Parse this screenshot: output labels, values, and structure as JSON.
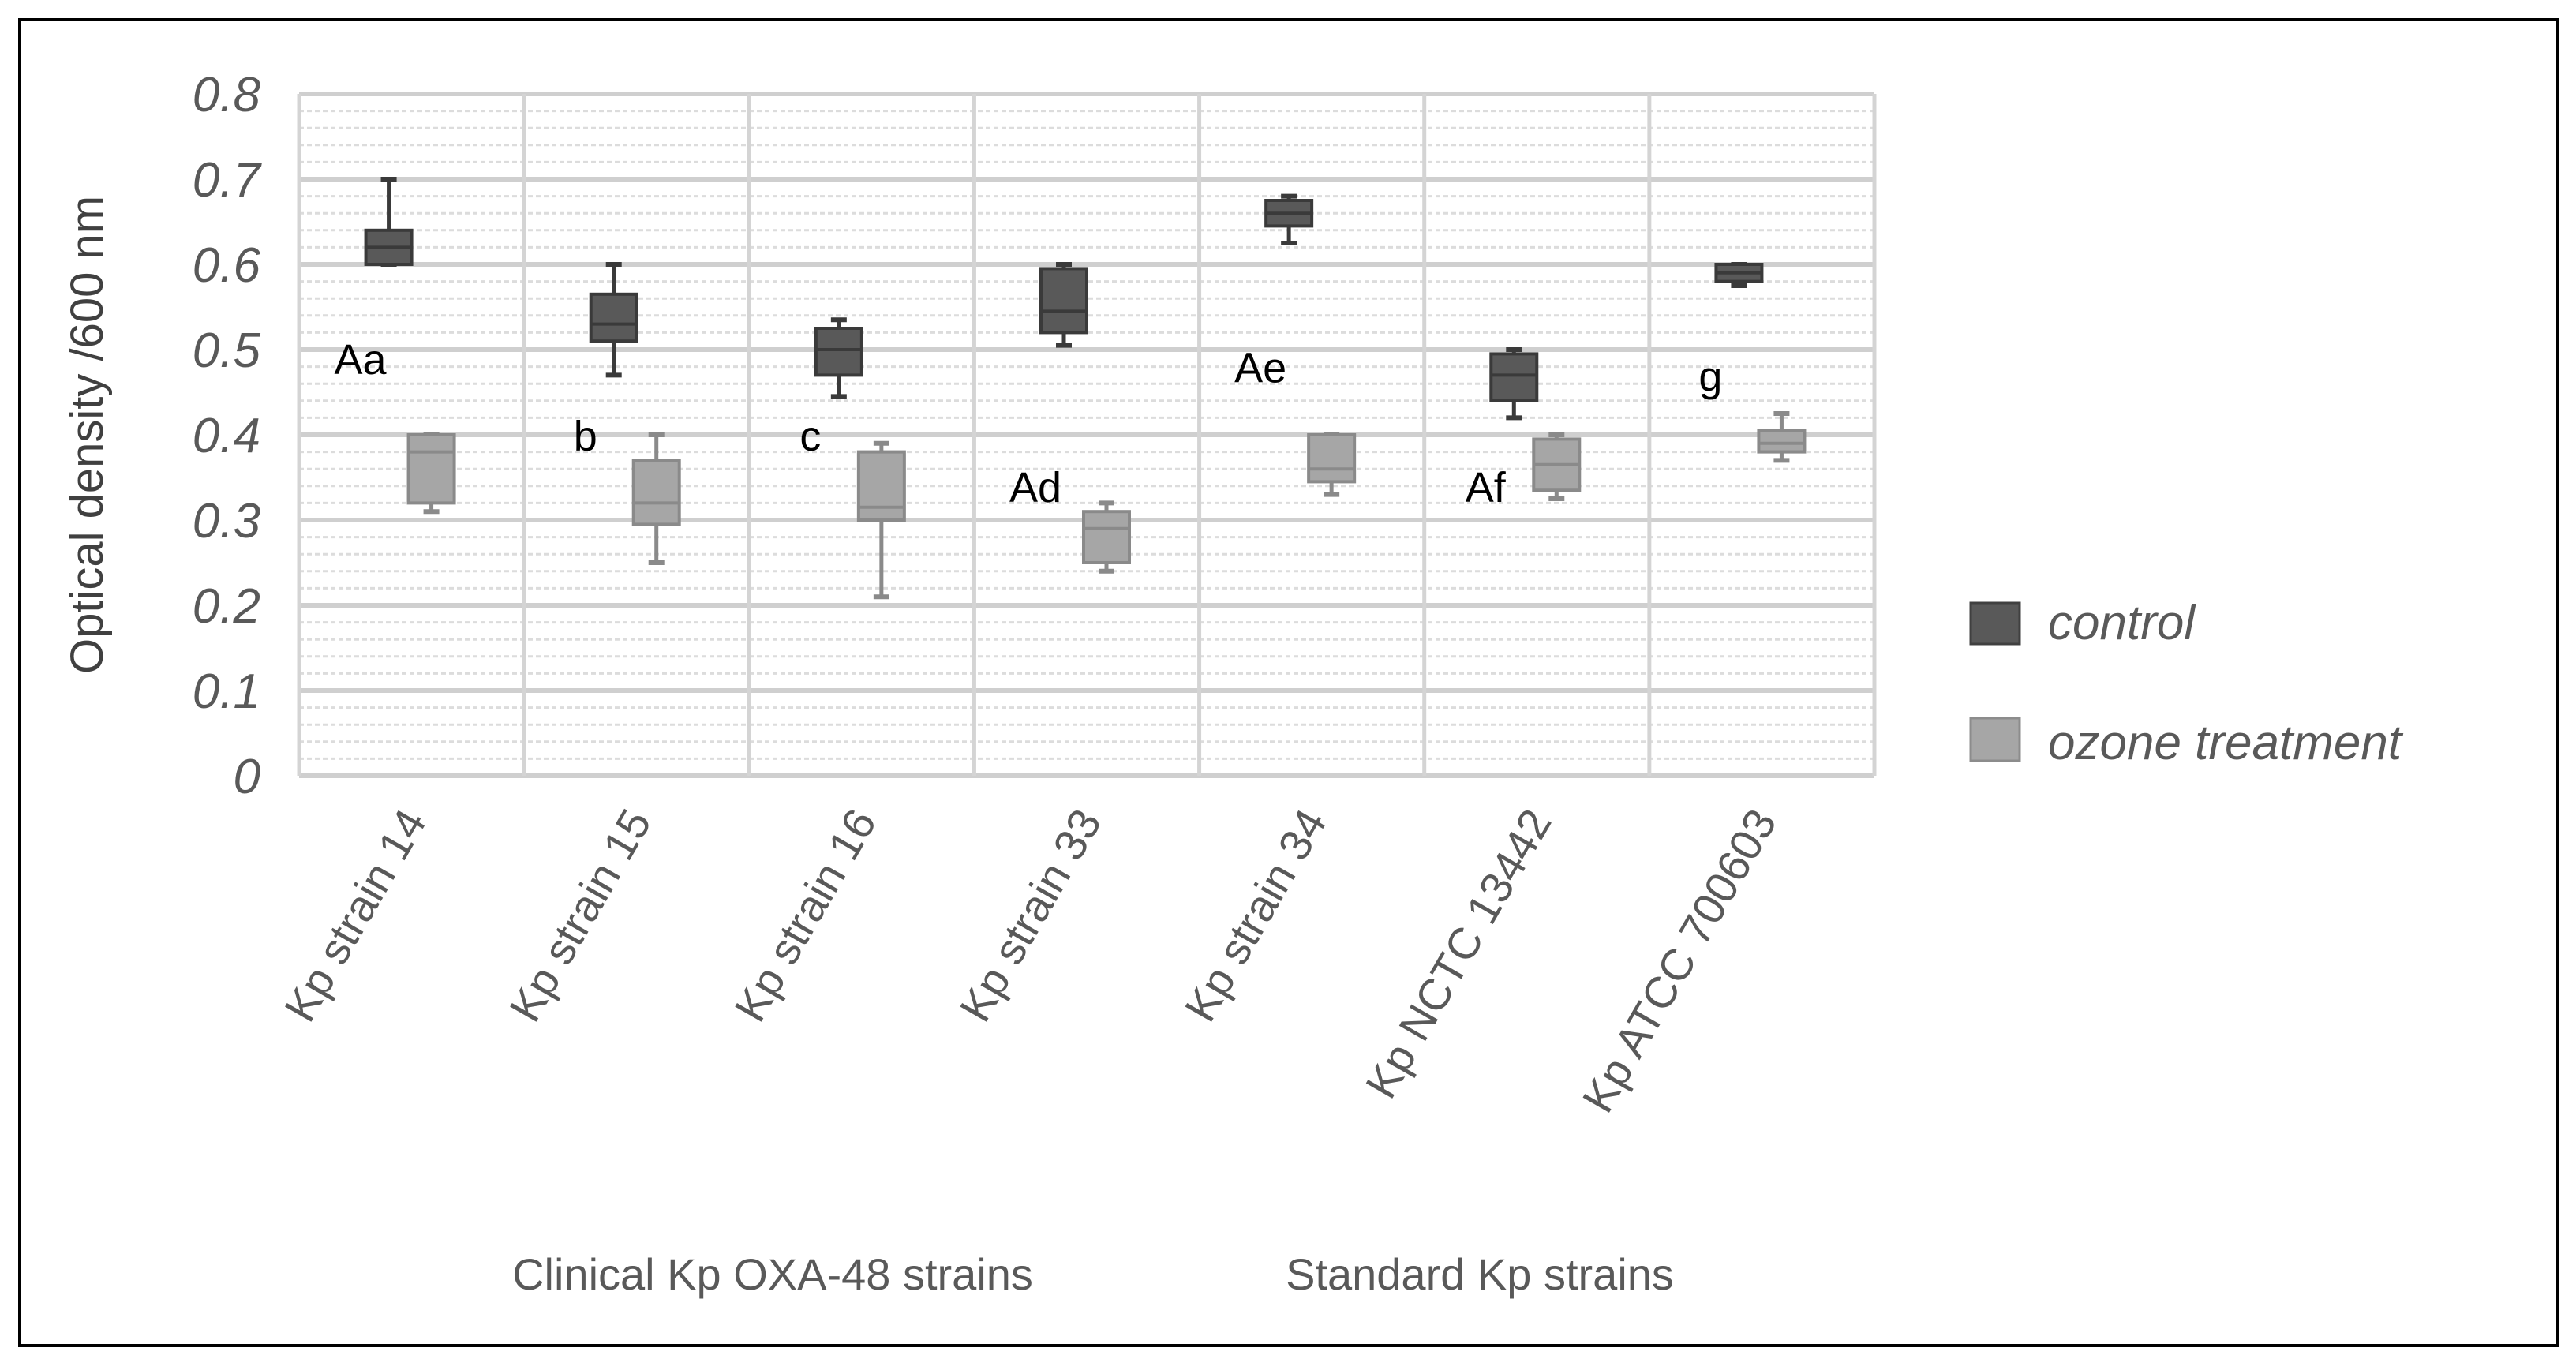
{
  "chart_data": {
    "type": "boxplot",
    "title": "",
    "ylabel": "Optical density /600 nm",
    "xlabel": "",
    "ylim": [
      0,
      0.8
    ],
    "yticks": [
      "0",
      "0.1",
      "0.2",
      "0.3",
      "0.4",
      "0.5",
      "0.6",
      "0.7",
      "0.8"
    ],
    "grid": true,
    "legend_position": "right",
    "categories": [
      "Kp strain 14",
      "Kp strain 15",
      "Kp strain 16",
      "Kp strain 33",
      "Kp strain 34",
      "Kp NCTC 13442",
      "Kp ATCC 700603"
    ],
    "category_groups": [
      {
        "label": "Clinical Kp OXA-48 strains"
      },
      {
        "label": "Standard Kp strains"
      }
    ],
    "series": [
      {
        "name": "control",
        "color": "#595959",
        "boxes": [
          {
            "min": 0.6,
            "q1": 0.6,
            "median": 0.62,
            "q3": 0.64,
            "max": 0.7
          },
          {
            "min": 0.47,
            "q1": 0.51,
            "median": 0.53,
            "q3": 0.565,
            "max": 0.6
          },
          {
            "min": 0.445,
            "q1": 0.47,
            "median": 0.5,
            "q3": 0.525,
            "max": 0.535
          },
          {
            "min": 0.505,
            "q1": 0.52,
            "median": 0.545,
            "q3": 0.595,
            "max": 0.6
          },
          {
            "min": 0.625,
            "q1": 0.645,
            "median": 0.66,
            "q3": 0.675,
            "max": 0.68
          },
          {
            "min": 0.42,
            "q1": 0.44,
            "median": 0.47,
            "q3": 0.495,
            "max": 0.5
          },
          {
            "min": 0.575,
            "q1": 0.58,
            "median": 0.59,
            "q3": 0.6,
            "max": 0.6
          }
        ]
      },
      {
        "name": "ozone treatment",
        "color": "#a6a6a6",
        "boxes": [
          {
            "min": 0.31,
            "q1": 0.32,
            "median": 0.38,
            "q3": 0.4,
            "max": 0.4
          },
          {
            "min": 0.25,
            "q1": 0.295,
            "median": 0.32,
            "q3": 0.37,
            "max": 0.4
          },
          {
            "min": 0.21,
            "q1": 0.3,
            "median": 0.315,
            "q3": 0.38,
            "max": 0.39
          },
          {
            "min": 0.24,
            "q1": 0.25,
            "median": 0.29,
            "q3": 0.31,
            "max": 0.32
          },
          {
            "min": 0.33,
            "q1": 0.345,
            "median": 0.36,
            "q3": 0.4,
            "max": 0.4
          },
          {
            "min": 0.325,
            "q1": 0.335,
            "median": 0.365,
            "q3": 0.395,
            "max": 0.4
          },
          {
            "min": 0.37,
            "q1": 0.38,
            "median": 0.39,
            "q3": 0.405,
            "max": 0.425
          }
        ]
      }
    ],
    "annotations": [
      {
        "text": "Aa",
        "category": "Kp strain 14",
        "y": 0.49
      },
      {
        "text": "b",
        "category": "Kp strain 15",
        "y": 0.4
      },
      {
        "text": "c",
        "category": "Kp strain 16",
        "y": 0.4
      },
      {
        "text": "Ad",
        "category": "Kp strain 33",
        "y": 0.34
      },
      {
        "text": "Ae",
        "category": "Kp strain 34",
        "y": 0.48
      },
      {
        "text": "Af",
        "category": "Kp NCTC 13442",
        "y": 0.34
      },
      {
        "text": "g",
        "category": "Kp ATCC 700603",
        "y": 0.47
      }
    ]
  }
}
